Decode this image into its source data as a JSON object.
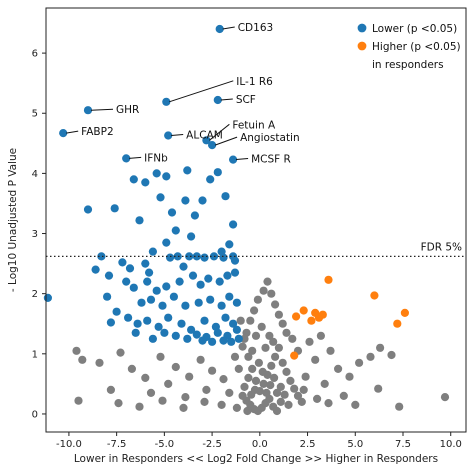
{
  "chart_data": {
    "type": "scatter",
    "xlabel": "Lower in Responders << Log2 Fold Change >> Higher in Responders",
    "ylabel": "- Log10 Unadjusted P Value",
    "xlim": [
      -11.2,
      10.8
    ],
    "ylim": [
      -0.3,
      6.75
    ],
    "x_ticks": [
      -10.0,
      -7.5,
      -5.0,
      -2.5,
      0.0,
      2.5,
      5.0,
      7.5,
      10.0
    ],
    "x_tick_labels": [
      "-10.0",
      "-7.5",
      "-5.0",
      "-2.5",
      "0.0",
      "2.5",
      "5.0",
      "7.5",
      "10.0"
    ],
    "y_ticks": [
      0,
      1,
      2,
      3,
      4,
      5,
      6
    ],
    "y_tick_labels": [
      "0",
      "1",
      "2",
      "3",
      "4",
      "5",
      "6"
    ],
    "grid": false,
    "legend_position": "top-right",
    "legend": {
      "entries": [
        {
          "label": "Lower (p <0.05)",
          "color": "#1f77b4"
        },
        {
          "label": "Higher (p <0.05)",
          "color": "#ff7f0e"
        }
      ],
      "footer": "in responders"
    },
    "threshold": {
      "y": 2.62,
      "label": "FDR 5%",
      "style": "dotted"
    },
    "annotations": [
      {
        "text": "CD163",
        "x": -2.1,
        "y": 6.4
      },
      {
        "text": "IL-1 R6",
        "x": -4.9,
        "y": 5.19
      },
      {
        "text": "SCF",
        "x": -2.2,
        "y": 5.22
      },
      {
        "text": "GHR",
        "x": -9.0,
        "y": 5.05
      },
      {
        "text": "FABP2",
        "x": -10.3,
        "y": 4.67
      },
      {
        "text": "ALCAM",
        "x": -4.8,
        "y": 4.63
      },
      {
        "text": "Fetuin A",
        "x": -2.8,
        "y": 4.55
      },
      {
        "text": "Angiostatin",
        "x": -2.5,
        "y": 4.47
      },
      {
        "text": "IFNb",
        "x": -7.0,
        "y": 4.25
      },
      {
        "text": "MCSF R",
        "x": -1.4,
        "y": 4.23
      }
    ],
    "series": [
      {
        "name": "Lower (p <0.05)",
        "color": "#1f77b4",
        "points": [
          [
            -2.1,
            6.4
          ],
          [
            -4.9,
            5.19
          ],
          [
            -2.2,
            5.22
          ],
          [
            -9.0,
            5.05
          ],
          [
            -10.3,
            4.67
          ],
          [
            -4.8,
            4.63
          ],
          [
            -2.8,
            4.55
          ],
          [
            -2.5,
            4.47
          ],
          [
            -7.0,
            4.25
          ],
          [
            -1.4,
            4.23
          ],
          [
            -11.1,
            1.93
          ],
          [
            -9.0,
            3.4
          ],
          [
            -7.6,
            3.42
          ],
          [
            -6.3,
            3.22
          ],
          [
            -8.3,
            2.62
          ],
          [
            -7.2,
            2.52
          ],
          [
            -6.8,
            2.42
          ],
          [
            -6.0,
            2.5
          ],
          [
            -5.8,
            2.35
          ],
          [
            -4.7,
            2.6
          ],
          [
            -4.3,
            2.62
          ],
          [
            -3.7,
            2.62
          ],
          [
            -3.3,
            2.62
          ],
          [
            -2.9,
            2.6
          ],
          [
            -2.4,
            2.62
          ],
          [
            -1.9,
            2.6
          ],
          [
            -1.4,
            2.62
          ],
          [
            -8.6,
            2.4
          ],
          [
            -7.9,
            2.3
          ],
          [
            -7.0,
            2.2
          ],
          [
            -6.6,
            2.1
          ],
          [
            -5.4,
            2.05
          ],
          [
            -4.9,
            2.12
          ],
          [
            -4.2,
            2.2
          ],
          [
            -3.5,
            2.3
          ],
          [
            -3.1,
            2.15
          ],
          [
            -2.7,
            2.25
          ],
          [
            -2.1,
            2.2
          ],
          [
            -1.7,
            2.3
          ],
          [
            -1.3,
            2.35
          ],
          [
            -8.0,
            1.95
          ],
          [
            -6.2,
            1.85
          ],
          [
            -5.7,
            1.9
          ],
          [
            -5.1,
            1.8
          ],
          [
            -4.5,
            1.95
          ],
          [
            -3.9,
            1.8
          ],
          [
            -3.2,
            1.85
          ],
          [
            -2.6,
            1.9
          ],
          [
            -2.0,
            1.8
          ],
          [
            -1.6,
            1.95
          ],
          [
            -1.2,
            1.85
          ],
          [
            -7.5,
            1.7
          ],
          [
            -6.9,
            1.6
          ],
          [
            -6.4,
            1.5
          ],
          [
            -5.9,
            1.55
          ],
          [
            -5.3,
            1.45
          ],
          [
            -4.8,
            1.6
          ],
          [
            -4.1,
            1.5
          ],
          [
            -3.6,
            1.4
          ],
          [
            -2.9,
            1.55
          ],
          [
            -2.3,
            1.45
          ],
          [
            -1.8,
            1.6
          ],
          [
            -1.4,
            1.5
          ],
          [
            -7.8,
            1.52
          ],
          [
            -5.0,
            1.35
          ],
          [
            -4.4,
            1.3
          ],
          [
            -3.8,
            1.25
          ],
          [
            -3.3,
            1.32
          ],
          [
            -2.8,
            1.28
          ],
          [
            -2.2,
            1.35
          ],
          [
            -1.7,
            1.3
          ],
          [
            -1.2,
            1.4
          ],
          [
            -6.5,
            1.35
          ],
          [
            -5.6,
            1.25
          ],
          [
            -3.0,
            1.22
          ],
          [
            -2.5,
            1.2
          ],
          [
            -1.9,
            1.22
          ],
          [
            -1.5,
            1.2
          ],
          [
            -1.1,
            1.25
          ],
          [
            -6.0,
            3.85
          ],
          [
            -5.4,
            4.0
          ],
          [
            -5.2,
            3.6
          ],
          [
            -4.6,
            3.35
          ],
          [
            -4.4,
            3.05
          ],
          [
            -4.9,
            2.85
          ],
          [
            -5.6,
            2.7
          ],
          [
            -3.9,
            3.55
          ],
          [
            -3.4,
            3.3
          ],
          [
            -3.0,
            3.55
          ],
          [
            -2.2,
            4.02
          ],
          [
            -1.8,
            3.62
          ],
          [
            -1.4,
            3.15
          ],
          [
            -1.6,
            2.82
          ],
          [
            -2.0,
            2.7
          ],
          [
            -6.6,
            3.9
          ],
          [
            -3.6,
            2.95
          ],
          [
            -2.6,
            3.9
          ],
          [
            -4.9,
            3.95
          ],
          [
            -3.8,
            4.05
          ],
          [
            -1.3,
            2.55
          ],
          [
            -5.9,
            2.2
          ],
          [
            -4.0,
            2.45
          ]
        ]
      },
      {
        "name": "Higher (p <0.05)",
        "color": "#ff7f0e",
        "points": [
          [
            3.6,
            2.23
          ],
          [
            6.0,
            1.97
          ],
          [
            7.6,
            1.68
          ],
          [
            7.2,
            1.5
          ],
          [
            2.3,
            1.72
          ],
          [
            1.9,
            1.62
          ],
          [
            2.9,
            1.68
          ],
          [
            3.1,
            1.6
          ],
          [
            3.3,
            1.65
          ],
          [
            2.7,
            1.55
          ],
          [
            1.8,
            0.97
          ]
        ]
      },
      {
        "name": "",
        "color": "#7f7f7f",
        "points": [
          [
            -9.6,
            1.05
          ],
          [
            -9.3,
            0.9
          ],
          [
            -8.4,
            0.85
          ],
          [
            -7.3,
            1.02
          ],
          [
            -6.7,
            0.75
          ],
          [
            -6.0,
            0.6
          ],
          [
            -5.2,
            0.95
          ],
          [
            -4.4,
            0.78
          ],
          [
            -3.7,
            0.62
          ],
          [
            -3.1,
            0.9
          ],
          [
            -2.5,
            0.72
          ],
          [
            -1.9,
            0.58
          ],
          [
            -7.8,
            0.4
          ],
          [
            -5.7,
            0.35
          ],
          [
            -4.8,
            0.5
          ],
          [
            -3.9,
            0.28
          ],
          [
            -2.8,
            0.4
          ],
          [
            -1.6,
            0.35
          ],
          [
            -9.5,
            0.22
          ],
          [
            -7.4,
            0.18
          ],
          [
            -6.3,
            0.12
          ],
          [
            -5.1,
            0.22
          ],
          [
            -4.0,
            0.1
          ],
          [
            -2.9,
            0.2
          ],
          [
            -2.0,
            0.15
          ],
          [
            -1.2,
            0.1
          ],
          [
            -0.9,
            1.12
          ],
          [
            -0.7,
            1.35
          ],
          [
            -0.5,
            1.55
          ],
          [
            -0.3,
            1.72
          ],
          [
            -0.1,
            1.9
          ],
          [
            0.2,
            2.05
          ],
          [
            0.4,
            2.2
          ],
          [
            0.6,
            2.0
          ],
          [
            0.8,
            1.82
          ],
          [
            1.0,
            1.65
          ],
          [
            1.2,
            1.5
          ],
          [
            1.4,
            1.35
          ],
          [
            -1.0,
            1.55
          ],
          [
            -0.8,
            1.25
          ],
          [
            -0.6,
            0.95
          ],
          [
            -0.4,
            0.75
          ],
          [
            -0.2,
            0.55
          ],
          [
            0.0,
            0.38
          ],
          [
            0.2,
            0.5
          ],
          [
            0.4,
            0.65
          ],
          [
            0.6,
            0.8
          ],
          [
            0.8,
            0.95
          ],
          [
            1.0,
            1.1
          ],
          [
            1.2,
            0.85
          ],
          [
            1.4,
            0.7
          ],
          [
            1.6,
            0.55
          ],
          [
            1.8,
            0.42
          ],
          [
            2.0,
            0.3
          ],
          [
            2.2,
            0.2
          ],
          [
            -0.9,
            0.3
          ],
          [
            -0.7,
            0.22
          ],
          [
            -0.5,
            0.15
          ],
          [
            -0.3,
            0.08
          ],
          [
            -0.1,
            0.05
          ],
          [
            0.1,
            0.1
          ],
          [
            0.3,
            0.18
          ],
          [
            0.5,
            0.25
          ],
          [
            0.7,
            0.12
          ],
          [
            0.9,
            0.05
          ],
          [
            1.1,
            0.2
          ],
          [
            1.3,
            0.32
          ],
          [
            1.5,
            0.15
          ],
          [
            -1.1,
            0.75
          ],
          [
            -1.3,
            0.95
          ],
          [
            -0.2,
            1.3
          ],
          [
            0.1,
            1.45
          ],
          [
            0.3,
            1.1
          ],
          [
            0.5,
            1.3
          ],
          [
            0.7,
            1.2
          ],
          [
            -0.4,
            1.05
          ],
          [
            -0.6,
            0.6
          ],
          [
            -0.8,
            0.45
          ],
          [
            0.9,
            0.35
          ],
          [
            1.1,
            0.45
          ],
          [
            2.4,
            0.62
          ],
          [
            2.9,
            0.9
          ],
          [
            3.4,
            0.5
          ],
          [
            4.1,
            0.75
          ],
          [
            4.7,
            0.62
          ],
          [
            5.2,
            0.85
          ],
          [
            5.8,
            0.95
          ],
          [
            6.3,
            1.1
          ],
          [
            6.9,
            0.98
          ],
          [
            2.6,
            1.2
          ],
          [
            3.2,
            1.3
          ],
          [
            3.7,
            1.05
          ],
          [
            2.3,
            0.4
          ],
          [
            3.0,
            0.25
          ],
          [
            3.6,
            0.18
          ],
          [
            4.4,
            0.3
          ],
          [
            5.0,
            0.15
          ],
          [
            6.2,
            0.42
          ],
          [
            7.3,
            0.12
          ],
          [
            9.7,
            0.28
          ],
          [
            1.7,
            1.25
          ],
          [
            2.0,
            1.05
          ],
          [
            -0.05,
            0.85
          ],
          [
            0.15,
            0.7
          ],
          [
            -0.25,
            0.4
          ],
          [
            0.35,
            0.35
          ],
          [
            -0.45,
            0.32
          ],
          [
            0.55,
            0.48
          ],
          [
            -0.65,
            0.05
          ],
          [
            0.75,
            0.6
          ]
        ]
      }
    ]
  }
}
